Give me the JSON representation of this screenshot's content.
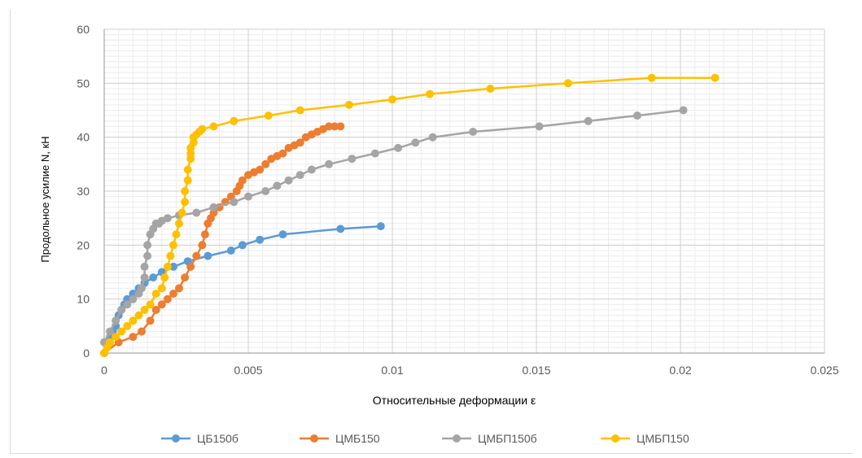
{
  "chart_data": {
    "type": "scatter",
    "title": "",
    "xlabel": "Относительные деформации  ε",
    "ylabel": "Продольное усилие N, кН",
    "xlim": [
      0,
      0.025
    ],
    "ylim": [
      0,
      60
    ],
    "xticks": [
      "0",
      "0.005",
      "0.01",
      "0.015",
      "0.02",
      "0.025"
    ],
    "yticks": [
      "0",
      "10",
      "20",
      "30",
      "40",
      "50",
      "60"
    ],
    "grid": true,
    "legend_position": "bottom",
    "series": [
      {
        "name": "ЦБ150б",
        "color": "#5b9bd5",
        "x": [
          0,
          0.0001,
          0.0002,
          0.0003,
          0.0004,
          0.0005,
          0.0006,
          0.0007,
          0.0008,
          0.001,
          0.0012,
          0.0014,
          0.0017,
          0.002,
          0.0024,
          0.0029,
          0.0036,
          0.0044,
          0.0048,
          0.0054,
          0.0062,
          0.0082,
          0.0096
        ],
        "y": [
          0,
          2,
          3,
          4,
          5,
          7,
          8,
          9,
          10,
          11,
          12,
          13,
          14,
          15,
          16,
          17,
          18,
          19,
          20,
          21,
          22,
          23,
          23.5
        ]
      },
      {
        "name": "ЦМБ150",
        "color": "#ed7d31",
        "x": [
          0,
          0.0005,
          0.001,
          0.0013,
          0.0016,
          0.0018,
          0.002,
          0.0022,
          0.0024,
          0.0026,
          0.0028,
          0.003,
          0.0032,
          0.0034,
          0.0035,
          0.0036,
          0.0037,
          0.0038,
          0.004,
          0.0042,
          0.0044,
          0.0046,
          0.0047,
          0.0048,
          0.005,
          0.0052,
          0.0054,
          0.0056,
          0.0058,
          0.006,
          0.0062,
          0.0064,
          0.0066,
          0.0068,
          0.007,
          0.0072,
          0.0074,
          0.0076,
          0.0078,
          0.008,
          0.0082
        ],
        "y": [
          0,
          2,
          3,
          4,
          6,
          8,
          9,
          10,
          11,
          12,
          14,
          16,
          18,
          20,
          22,
          24,
          25,
          26,
          27,
          28,
          29,
          30,
          31,
          32,
          33,
          33.5,
          34,
          35,
          36,
          36.5,
          37,
          38,
          38.5,
          39,
          40,
          40.5,
          41,
          41.5,
          42,
          42,
          42
        ]
      },
      {
        "name": "ЦМБП150б",
        "color": "#a5a5a5",
        "x": [
          0,
          0.0002,
          0.0004,
          0.0006,
          0.0008,
          0.001,
          0.0012,
          0.0013,
          0.0014,
          0.0014,
          0.0015,
          0.0015,
          0.0016,
          0.0017,
          0.0018,
          0.0019,
          0.002,
          0.0022,
          0.0026,
          0.0032,
          0.0038,
          0.0045,
          0.005,
          0.0056,
          0.006,
          0.0064,
          0.0068,
          0.0072,
          0.0078,
          0.0086,
          0.0094,
          0.0102,
          0.0108,
          0.0114,
          0.0128,
          0.0151,
          0.0168,
          0.0185,
          0.0201
        ],
        "y": [
          2,
          4,
          6,
          8,
          9,
          10,
          11,
          12,
          14,
          16,
          18,
          20,
          22,
          23,
          24,
          24,
          24.5,
          25,
          25.5,
          26,
          27,
          28,
          29,
          30,
          31,
          32,
          33,
          34,
          35,
          36,
          37,
          38,
          39,
          40,
          41,
          42,
          43,
          44,
          45
        ]
      },
      {
        "name": "ЦМБП150",
        "color": "#ffc000",
        "x": [
          0,
          0.0001,
          0.0002,
          0.0004,
          0.0006,
          0.0008,
          0.001,
          0.0012,
          0.0014,
          0.0016,
          0.0018,
          0.002,
          0.0021,
          0.0022,
          0.0023,
          0.0024,
          0.0025,
          0.0026,
          0.0027,
          0.0028,
          0.0028,
          0.0029,
          0.0029,
          0.003,
          0.003,
          0.003,
          0.0031,
          0.0031,
          0.0032,
          0.0033,
          0.0034,
          0.0038,
          0.0045,
          0.0057,
          0.0068,
          0.0085,
          0.01,
          0.0113,
          0.0134,
          0.0161,
          0.019,
          0.0212
        ],
        "y": [
          0,
          1,
          2,
          3,
          4,
          5,
          6,
          7,
          8,
          9,
          11,
          12,
          14,
          16,
          18,
          20,
          22,
          24,
          26,
          28,
          30,
          32,
          34,
          36,
          37,
          38,
          39,
          40,
          40.5,
          41,
          41.5,
          42,
          43,
          44,
          45,
          46,
          47,
          48,
          49,
          50,
          51,
          51
        ]
      }
    ]
  }
}
